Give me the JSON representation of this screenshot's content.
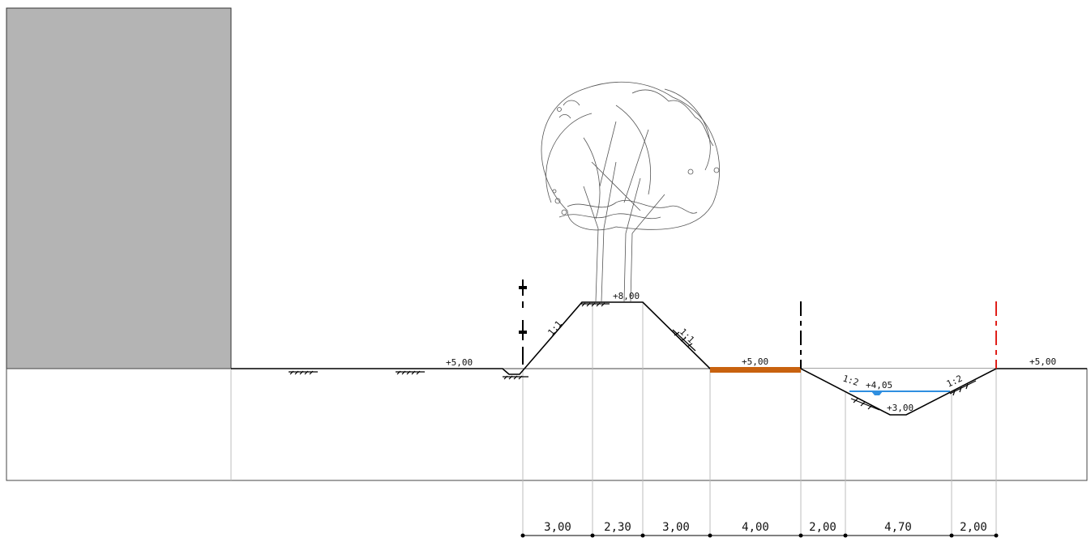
{
  "elevations": {
    "left_ground": "+5,00",
    "dike_crest": "+8,00",
    "path_level": "+5,00",
    "water_level": "+4,05",
    "ditch_bottom": "+3,00",
    "right_ground": "+5,00"
  },
  "slopes": {
    "dike_left": "1:1",
    "dike_right": "1:1",
    "ditch_left": "1:2",
    "ditch_right": "1:2"
  },
  "dimensions": [
    "3,00",
    "2,30",
    "3,00",
    "4,00",
    "2,00",
    "4,70",
    "2,00"
  ],
  "colors": {
    "building": "#b4b4b4",
    "path": "#c8620f",
    "water": "#2f8fe0",
    "boundary_marker": "#e0201a",
    "line": "#000000",
    "guide": "#bdbdbd"
  },
  "icons": {
    "tree": "tree-icon",
    "grass": "grass-hatch-icon"
  }
}
